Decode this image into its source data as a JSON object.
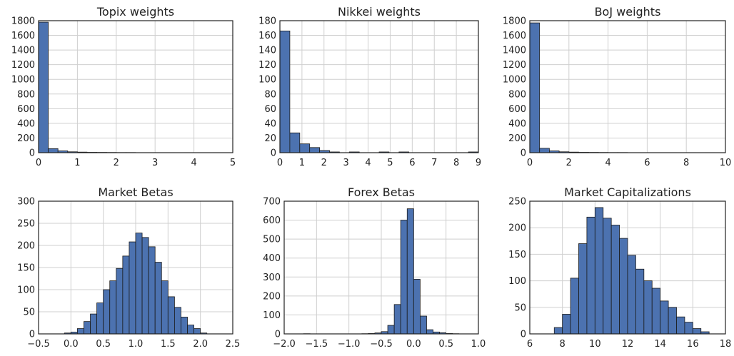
{
  "style": {
    "bar_color": "#4c72b0",
    "grid_color": "#cfcfcf",
    "frame_color": "#222222"
  },
  "chart_data": [
    {
      "type": "bar",
      "title": "Topix weights",
      "xlim": [
        0,
        5
      ],
      "ylim": [
        0,
        1800
      ],
      "xticks": [
        0,
        1,
        2,
        3,
        4,
        5
      ],
      "yticks": [
        0,
        200,
        400,
        600,
        800,
        1000,
        1200,
        1400,
        1600,
        1800
      ],
      "bin_edges": [
        0,
        0.25,
        0.5,
        0.75,
        1.0,
        1.25,
        1.5,
        1.75,
        2.0,
        2.25,
        2.5,
        2.75,
        3.0,
        3.25,
        3.5,
        3.75,
        4.0,
        4.25,
        4.5,
        4.75,
        5.0
      ],
      "values": [
        1780,
        55,
        25,
        12,
        8,
        5,
        4,
        3,
        2,
        2,
        1,
        1,
        1,
        1,
        0,
        1,
        0,
        0,
        1,
        1
      ]
    },
    {
      "type": "bar",
      "title": "Nikkei weights",
      "xlim": [
        0,
        9
      ],
      "ylim": [
        0,
        180
      ],
      "xticks": [
        0,
        1,
        2,
        3,
        4,
        5,
        6,
        7,
        8,
        9
      ],
      "yticks": [
        0,
        20,
        40,
        60,
        80,
        100,
        120,
        140,
        160,
        180
      ],
      "bin_edges": [
        0,
        0.45,
        0.9,
        1.35,
        1.8,
        2.25,
        2.7,
        3.15,
        3.6,
        4.05,
        4.5,
        4.95,
        5.4,
        5.85,
        6.3,
        6.75,
        7.2,
        7.65,
        8.1,
        8.55,
        9.0
      ],
      "values": [
        166,
        27,
        12,
        7,
        3,
        1,
        0,
        1,
        0,
        0,
        1,
        0,
        1,
        0,
        0,
        0,
        0,
        0,
        0,
        1
      ]
    },
    {
      "type": "bar",
      "title": "BoJ weights",
      "xlim": [
        0,
        10
      ],
      "ylim": [
        0,
        1800
      ],
      "xticks": [
        0,
        2,
        4,
        6,
        8,
        10
      ],
      "yticks": [
        0,
        200,
        400,
        600,
        800,
        1000,
        1200,
        1400,
        1600,
        1800
      ],
      "bin_edges": [
        0,
        0.5,
        1.0,
        1.5,
        2.0,
        2.5,
        3.0,
        3.5,
        4.0,
        4.5,
        5.0,
        5.5,
        6.0,
        6.5,
        7.0,
        7.5,
        8.0,
        8.5,
        9.0,
        9.5
      ],
      "values": [
        1770,
        60,
        25,
        12,
        8,
        5,
        4,
        3,
        2,
        2,
        1,
        1,
        1,
        1,
        1,
        0,
        1,
        0,
        1
      ]
    },
    {
      "type": "bar",
      "title": "Market Betas",
      "xlim": [
        -0.5,
        2.5
      ],
      "ylim": [
        0,
        300
      ],
      "xticks": [
        -0.5,
        0.0,
        0.5,
        1.0,
        1.5,
        2.0,
        2.5
      ],
      "yticks": [
        0,
        50,
        100,
        150,
        200,
        250,
        300
      ],
      "bin_edges": [
        -0.1,
        0.0,
        0.1,
        0.2,
        0.3,
        0.4,
        0.5,
        0.6,
        0.7,
        0.8,
        0.9,
        1.0,
        1.1,
        1.2,
        1.3,
        1.4,
        1.5,
        1.6,
        1.7,
        1.8,
        1.9,
        2.0,
        2.1
      ],
      "values": [
        2,
        4,
        12,
        28,
        45,
        70,
        100,
        120,
        148,
        176,
        208,
        228,
        218,
        197,
        162,
        120,
        84,
        60,
        38,
        20,
        12,
        2
      ]
    },
    {
      "type": "bar",
      "title": "Forex Betas",
      "xlim": [
        -2.0,
        1.0
      ],
      "ylim": [
        0,
        700
      ],
      "xticks": [
        -2.0,
        -1.5,
        -1.0,
        -0.5,
        0.0,
        0.5,
        1.0
      ],
      "yticks": [
        0,
        100,
        200,
        300,
        400,
        500,
        600,
        700
      ],
      "bin_edges": [
        -1.7,
        -1.6,
        -1.5,
        -1.4,
        -1.3,
        -1.2,
        -1.1,
        -1.0,
        -0.9,
        -0.8,
        -0.7,
        -0.6,
        -0.5,
        -0.4,
        -0.3,
        -0.2,
        -0.1,
        0.0,
        0.1,
        0.2,
        0.3,
        0.4,
        0.5,
        0.6,
        0.7
      ],
      "values": [
        1,
        0,
        0,
        0,
        0,
        0,
        0,
        0,
        0,
        1,
        2,
        5,
        12,
        45,
        155,
        600,
        660,
        288,
        94,
        22,
        10,
        6,
        2,
        1
      ]
    },
    {
      "type": "bar",
      "title": "Market Capitalizations",
      "xlim": [
        6,
        18
      ],
      "ylim": [
        0,
        250
      ],
      "xticks": [
        6,
        8,
        10,
        12,
        14,
        16,
        18
      ],
      "yticks": [
        0,
        50,
        100,
        150,
        200,
        250
      ],
      "bin_edges": [
        7.5,
        8.0,
        8.5,
        9.0,
        9.5,
        10.0,
        10.5,
        11.0,
        11.5,
        12.0,
        12.5,
        13.0,
        13.5,
        14.0,
        14.5,
        15.0,
        15.5,
        16.0,
        16.5,
        17.0
      ],
      "values": [
        12,
        37,
        105,
        170,
        220,
        238,
        218,
        205,
        180,
        148,
        122,
        100,
        86,
        62,
        50,
        32,
        22,
        10,
        4
      ]
    }
  ]
}
